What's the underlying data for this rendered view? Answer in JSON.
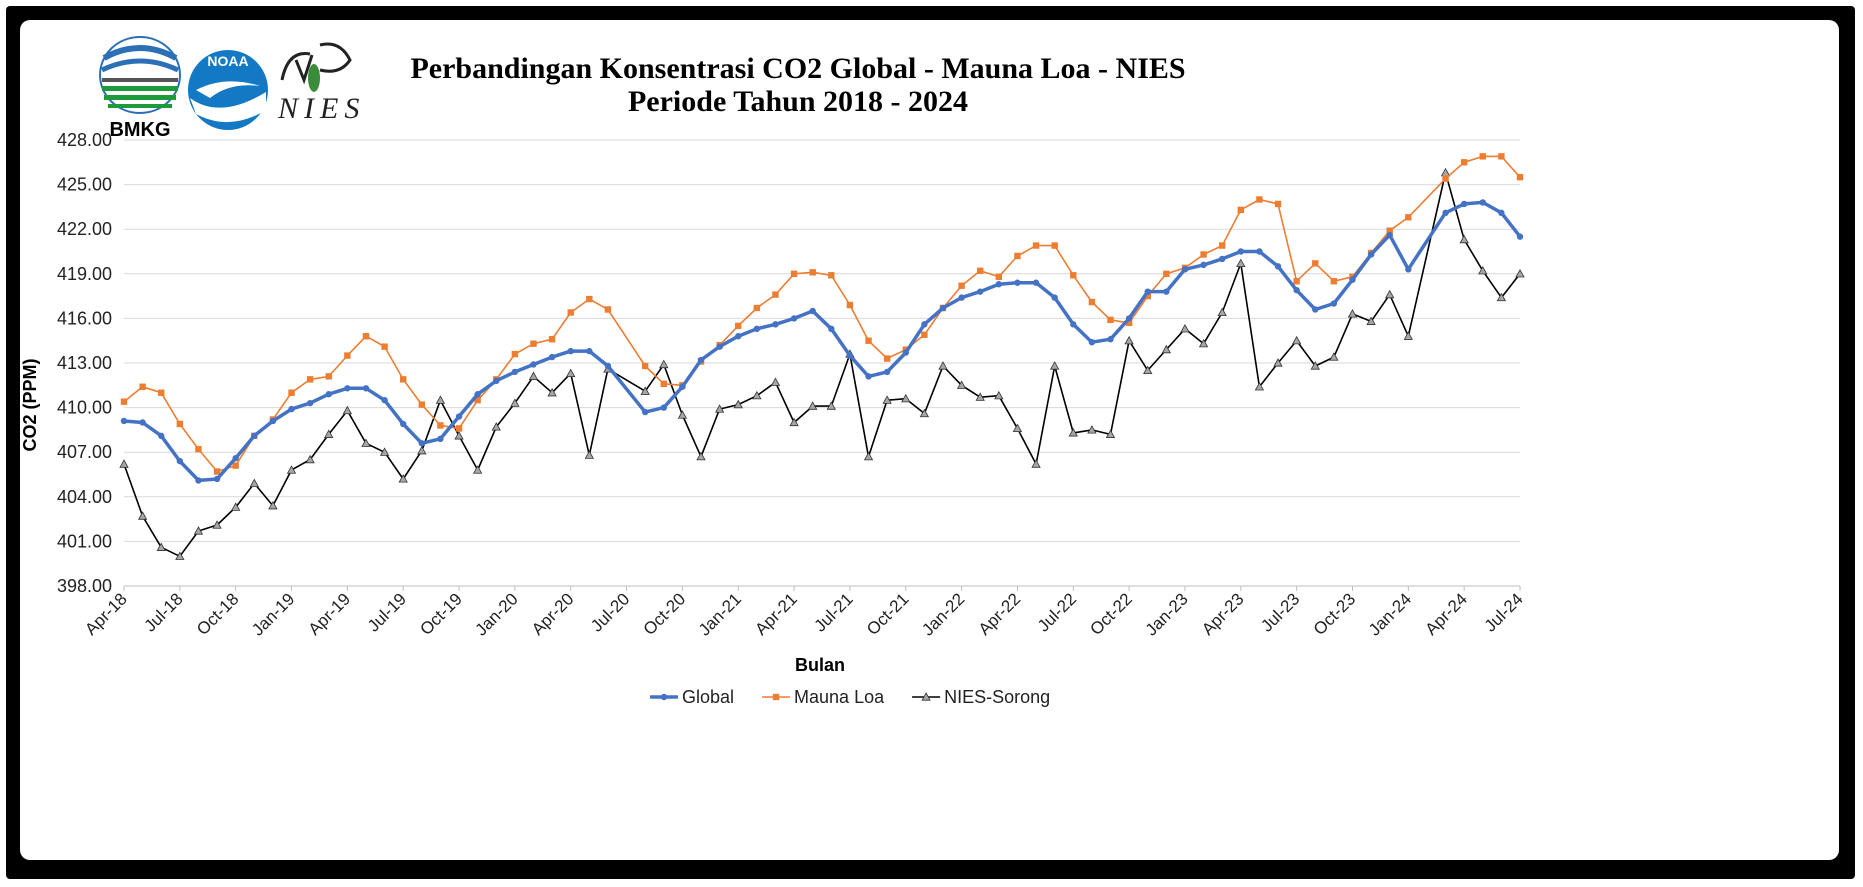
{
  "logos": {
    "bmkg": "BMKG",
    "noaa": "NOAA",
    "nies": "NIES"
  },
  "colors": {
    "global": "#4472C4",
    "mauna_loa": "#ED7D31",
    "nies": "#000000",
    "grid": "#D9D9D9"
  },
  "chart_data": {
    "type": "line",
    "title": "Perbandingan Konsentrasi CO2 Global - Mauna Loa - NIES",
    "subtitle": "Periode Tahun 2018 - 2024",
    "xlabel": "Bulan",
    "ylabel": "CO2 (PPM)",
    "ylim": [
      398,
      428
    ],
    "yticks": [
      "398.00",
      "401.00",
      "404.00",
      "407.00",
      "410.00",
      "413.00",
      "416.00",
      "419.00",
      "422.00",
      "425.00",
      "428.00"
    ],
    "xticks": [
      {
        "i": 0,
        "label": "Apr-18"
      },
      {
        "i": 3,
        "label": "Jul-18"
      },
      {
        "i": 6,
        "label": "Oct-18"
      },
      {
        "i": 9,
        "label": "Jan-19"
      },
      {
        "i": 12,
        "label": "Apr-19"
      },
      {
        "i": 15,
        "label": "Jul-19"
      },
      {
        "i": 18,
        "label": "Oct-19"
      },
      {
        "i": 21,
        "label": "Jan-20"
      },
      {
        "i": 24,
        "label": "Apr-20"
      },
      {
        "i": 27,
        "label": "Jul-20"
      },
      {
        "i": 30,
        "label": "Oct-20"
      },
      {
        "i": 33,
        "label": "Jan-21"
      },
      {
        "i": 36,
        "label": "Apr-21"
      },
      {
        "i": 39,
        "label": "Jul-21"
      },
      {
        "i": 42,
        "label": "Oct-21"
      },
      {
        "i": 45,
        "label": "Jan-22"
      },
      {
        "i": 48,
        "label": "Apr-22"
      },
      {
        "i": 51,
        "label": "Jul-22"
      },
      {
        "i": 54,
        "label": "Oct-22"
      },
      {
        "i": 57,
        "label": "Jan-23"
      },
      {
        "i": 60,
        "label": "Apr-23"
      },
      {
        "i": 63,
        "label": "Jul-23"
      },
      {
        "i": 66,
        "label": "Oct-23"
      },
      {
        "i": 69,
        "label": "Jan-24"
      },
      {
        "i": 72,
        "label": "Apr-24"
      },
      {
        "i": 75,
        "label": "Jul-24"
      }
    ],
    "grid": true,
    "legend_position": "bottom",
    "series": [
      {
        "name": "Global",
        "marker": "circle",
        "points": [
          [
            0,
            409.1
          ],
          [
            1,
            409.0
          ],
          [
            2,
            408.1
          ],
          [
            3,
            406.4
          ],
          [
            4,
            405.1
          ],
          [
            5,
            405.2
          ],
          [
            6,
            406.6
          ],
          [
            7,
            408.1
          ],
          [
            8,
            409.1
          ],
          [
            9,
            409.9
          ],
          [
            10,
            410.3
          ],
          [
            11,
            410.9
          ],
          [
            12,
            411.3
          ],
          [
            13,
            411.3
          ],
          [
            14,
            410.5
          ],
          [
            15,
            408.9
          ],
          [
            16,
            407.6
          ],
          [
            17,
            407.9
          ],
          [
            18,
            409.4
          ],
          [
            19,
            410.9
          ],
          [
            20,
            411.8
          ],
          [
            21,
            412.4
          ],
          [
            22,
            412.9
          ],
          [
            23,
            413.4
          ],
          [
            24,
            413.8
          ],
          [
            25,
            413.8
          ],
          [
            26,
            412.8
          ],
          [
            28,
            409.7
          ],
          [
            29,
            410.0
          ],
          [
            30,
            411.4
          ],
          [
            31,
            413.2
          ],
          [
            32,
            414.1
          ],
          [
            33,
            414.8
          ],
          [
            34,
            415.3
          ],
          [
            35,
            415.6
          ],
          [
            36,
            416.0
          ],
          [
            37,
            416.5
          ],
          [
            38,
            415.3
          ],
          [
            39,
            413.5
          ],
          [
            40,
            412.1
          ],
          [
            41,
            412.4
          ],
          [
            42,
            413.7
          ],
          [
            43,
            415.6
          ],
          [
            44,
            416.7
          ],
          [
            45,
            417.4
          ],
          [
            46,
            417.8
          ],
          [
            47,
            418.3
          ],
          [
            48,
            418.4
          ],
          [
            49,
            418.4
          ],
          [
            50,
            417.4
          ],
          [
            51,
            415.6
          ],
          [
            52,
            414.4
          ],
          [
            53,
            414.6
          ],
          [
            54,
            416.0
          ],
          [
            55,
            417.8
          ],
          [
            56,
            417.8
          ],
          [
            57,
            419.3
          ],
          [
            58,
            419.6
          ],
          [
            59,
            420.0
          ],
          [
            60,
            420.5
          ],
          [
            61,
            420.5
          ],
          [
            62,
            419.5
          ],
          [
            63,
            417.9
          ],
          [
            64,
            416.6
          ],
          [
            65,
            417.0
          ],
          [
            66,
            418.6
          ],
          [
            67,
            420.3
          ],
          [
            68,
            421.6
          ],
          [
            69,
            419.3
          ],
          [
            71,
            423.1
          ],
          [
            72,
            423.7
          ],
          [
            73,
            423.8
          ],
          [
            74,
            423.1
          ],
          [
            75,
            421.5
          ]
        ]
      },
      {
        "name": "Mauna Loa",
        "marker": "square",
        "points": [
          [
            0,
            410.4
          ],
          [
            1,
            411.4
          ],
          [
            2,
            411.0
          ],
          [
            3,
            408.9
          ],
          [
            4,
            407.2
          ],
          [
            5,
            405.7
          ],
          [
            6,
            406.1
          ],
          [
            7,
            408.1
          ],
          [
            8,
            409.2
          ],
          [
            9,
            411.0
          ],
          [
            10,
            411.9
          ],
          [
            11,
            412.1
          ],
          [
            12,
            413.5
          ],
          [
            13,
            414.8
          ],
          [
            14,
            414.1
          ],
          [
            15,
            411.9
          ],
          [
            16,
            410.2
          ],
          [
            17,
            408.8
          ],
          [
            18,
            408.6
          ],
          [
            19,
            410.5
          ],
          [
            20,
            411.9
          ],
          [
            21,
            413.6
          ],
          [
            22,
            414.3
          ],
          [
            23,
            414.6
          ],
          [
            24,
            416.4
          ],
          [
            25,
            417.3
          ],
          [
            26,
            416.6
          ],
          [
            28,
            412.8
          ],
          [
            29,
            411.6
          ],
          [
            30,
            411.5
          ],
          [
            31,
            413.1
          ],
          [
            32,
            414.2
          ],
          [
            33,
            415.5
          ],
          [
            34,
            416.7
          ],
          [
            35,
            417.6
          ],
          [
            36,
            419.0
          ],
          [
            37,
            419.1
          ],
          [
            38,
            418.9
          ],
          [
            39,
            416.9
          ],
          [
            40,
            414.5
          ],
          [
            41,
            413.3
          ],
          [
            42,
            413.9
          ],
          [
            43,
            414.9
          ],
          [
            44,
            416.7
          ],
          [
            45,
            418.2
          ],
          [
            46,
            419.2
          ],
          [
            47,
            418.8
          ],
          [
            48,
            420.2
          ],
          [
            49,
            420.9
          ],
          [
            50,
            420.9
          ],
          [
            51,
            418.9
          ],
          [
            52,
            417.1
          ],
          [
            53,
            415.9
          ],
          [
            54,
            415.7
          ],
          [
            55,
            417.5
          ],
          [
            56,
            419.0
          ],
          [
            57,
            419.4
          ],
          [
            58,
            420.3
          ],
          [
            59,
            420.9
          ],
          [
            60,
            423.3
          ],
          [
            61,
            424.0
          ],
          [
            62,
            423.7
          ],
          [
            63,
            418.5
          ],
          [
            64,
            419.7
          ],
          [
            65,
            418.5
          ],
          [
            66,
            418.8
          ],
          [
            67,
            420.4
          ],
          [
            68,
            421.9
          ],
          [
            69,
            422.8
          ],
          [
            71,
            425.4
          ],
          [
            72,
            426.5
          ],
          [
            73,
            426.9
          ],
          [
            74,
            426.9
          ],
          [
            75,
            425.5
          ]
        ]
      },
      {
        "name": "NIES-Sorong",
        "marker": "triangle",
        "points": [
          [
            0,
            406.2
          ],
          [
            1,
            402.7
          ],
          [
            2,
            400.6
          ],
          [
            3,
            400.0
          ],
          [
            4,
            401.7
          ],
          [
            5,
            402.1
          ],
          [
            6,
            403.3
          ],
          [
            7,
            404.9
          ],
          [
            8,
            403.4
          ],
          [
            9,
            405.8
          ],
          [
            10,
            406.5
          ],
          [
            11,
            408.2
          ],
          [
            12,
            409.8
          ],
          [
            13,
            407.6
          ],
          [
            14,
            407.0
          ],
          [
            15,
            405.2
          ],
          [
            16,
            407.1
          ],
          [
            17,
            410.5
          ],
          [
            18,
            408.1
          ],
          [
            19,
            405.8
          ],
          [
            20,
            408.7
          ],
          [
            21,
            410.3
          ],
          [
            22,
            412.1
          ],
          [
            23,
            411.0
          ],
          [
            24,
            412.3
          ],
          [
            25,
            406.8
          ],
          [
            26,
            412.6
          ],
          [
            28,
            411.1
          ],
          [
            29,
            412.9
          ],
          [
            30,
            409.5
          ],
          [
            31,
            406.7
          ],
          [
            32,
            409.9
          ],
          [
            33,
            410.2
          ],
          [
            34,
            410.8
          ],
          [
            35,
            411.7
          ],
          [
            36,
            409.0
          ],
          [
            37,
            410.1
          ],
          [
            38,
            410.1
          ],
          [
            39,
            413.6
          ],
          [
            40,
            406.7
          ],
          [
            41,
            410.5
          ],
          [
            42,
            410.6
          ],
          [
            43,
            409.6
          ],
          [
            44,
            412.8
          ],
          [
            45,
            411.5
          ],
          [
            46,
            410.7
          ],
          [
            47,
            410.8
          ],
          [
            48,
            408.6
          ],
          [
            49,
            406.2
          ],
          [
            50,
            412.8
          ],
          [
            51,
            408.3
          ],
          [
            52,
            408.5
          ],
          [
            53,
            408.2
          ],
          [
            54,
            414.5
          ],
          [
            55,
            412.5
          ],
          [
            56,
            413.9
          ],
          [
            57,
            415.3
          ],
          [
            58,
            414.3
          ],
          [
            59,
            416.4
          ],
          [
            60,
            419.7
          ],
          [
            61,
            411.4
          ],
          [
            62,
            413.0
          ],
          [
            63,
            414.5
          ],
          [
            64,
            412.8
          ],
          [
            65,
            413.4
          ],
          [
            66,
            416.3
          ],
          [
            67,
            415.8
          ],
          [
            68,
            417.6
          ],
          [
            69,
            414.8
          ],
          [
            71,
            425.8
          ],
          [
            72,
            421.3
          ],
          [
            73,
            419.2
          ],
          [
            74,
            417.4
          ],
          [
            75,
            419.0
          ]
        ]
      }
    ]
  }
}
